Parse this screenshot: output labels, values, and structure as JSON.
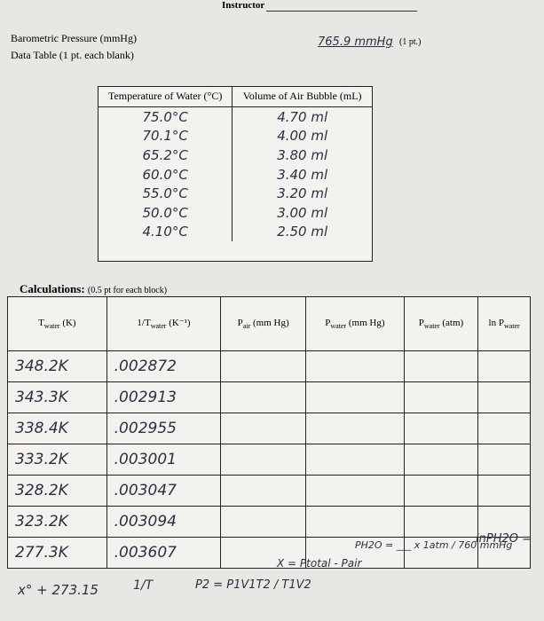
{
  "header": {
    "instructor_label": "Instructor"
  },
  "barometric": {
    "label": "Barometric Pressure (mmHg)",
    "answer": "765.9 mmHg",
    "points": "(1 pt.)"
  },
  "data_table": {
    "title": "Data Table (1 pt. each blank)",
    "columns": [
      "Temperature of Water (°C)",
      "Volume of Air Bubble (mL)"
    ],
    "rows": [
      [
        "75.0°C",
        "4.70 ml"
      ],
      [
        "70.1°C",
        "4.00 ml"
      ],
      [
        "65.2°C",
        "3.80 ml"
      ],
      [
        "60.0°C",
        "3.40 ml"
      ],
      [
        "55.0°C",
        "3.20 ml"
      ],
      [
        "50.0°C",
        "3.00 ml"
      ],
      [
        "4.10°C",
        "2.50 ml"
      ]
    ]
  },
  "calculations": {
    "title": "Calculations:",
    "points": "(0.5 pt for each block)",
    "columns": [
      {
        "main": "T",
        "sub": "water",
        "unit": " (K)"
      },
      {
        "main": "1/T",
        "sub": "water",
        "unit": " (K⁻¹)"
      },
      {
        "main": "P",
        "sub": "air",
        "unit": " (mm Hg)"
      },
      {
        "main": "P",
        "sub": "water",
        "unit": " (mm Hg)"
      },
      {
        "main": "P",
        "sub": "water",
        "unit": " (atm)"
      },
      {
        "main": "ln P",
        "sub": "water",
        "unit": ""
      }
    ],
    "rows": [
      [
        "348.2K",
        ".002872"
      ],
      [
        "343.3K",
        ".002913"
      ],
      [
        "338.4K",
        ".002955"
      ],
      [
        "333.2K",
        ".003001"
      ],
      [
        "328.2K",
        ".003047"
      ],
      [
        "323.2K",
        ".003094"
      ],
      [
        "277.3K",
        ".003607"
      ]
    ]
  },
  "notes": {
    "kelvin": "x° + 273.15",
    "inverse": "1/T",
    "combined_gas": "P2 = P1V1T2 / T1V2",
    "dalton": "X = Ptotal - Pair",
    "conversion": "PH2O = ___ x 1atm / 760 mmHg",
    "log": "lnPH2O ="
  }
}
